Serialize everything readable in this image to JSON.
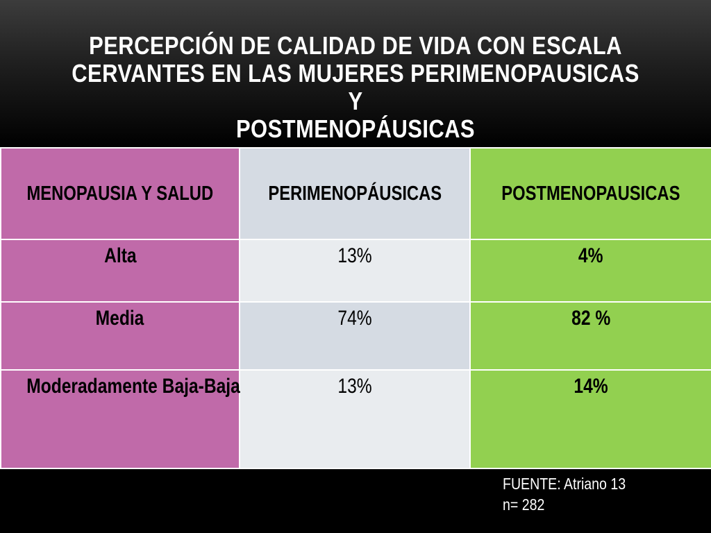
{
  "slide": {
    "title_lines": [
      "PERCEPCIÓN DE CALIDAD DE VIDA CON ESCALA",
      "CERVANTES  EN LAS MUJERES  PERIMENOPAUSICAS Y",
      "POSTMENOPÁUSICAS"
    ]
  },
  "table": {
    "headers": [
      "MENOPAUSIA Y SALUD",
      "PERIMENOPÁUSICAS",
      "POSTMENOPAUSICAS"
    ],
    "rows": [
      {
        "label": "Alta",
        "peri": "13%",
        "post": "4%"
      },
      {
        "label": "Media",
        "peri": "74%",
        "post": "82 %"
      },
      {
        "label": "Moderadamente Baja-Baja",
        "peri": "13%",
        "post": "14%"
      }
    ]
  },
  "footer": {
    "source": "FUENTE: Atriano 13",
    "n": "n= 282"
  },
  "colors": {
    "col1": "#c06aa9",
    "col2_a": "#d5dbe3",
    "col2_b": "#e9ecef",
    "col3": "#92d050",
    "background": "#000000",
    "title_text": "#ffffff"
  }
}
